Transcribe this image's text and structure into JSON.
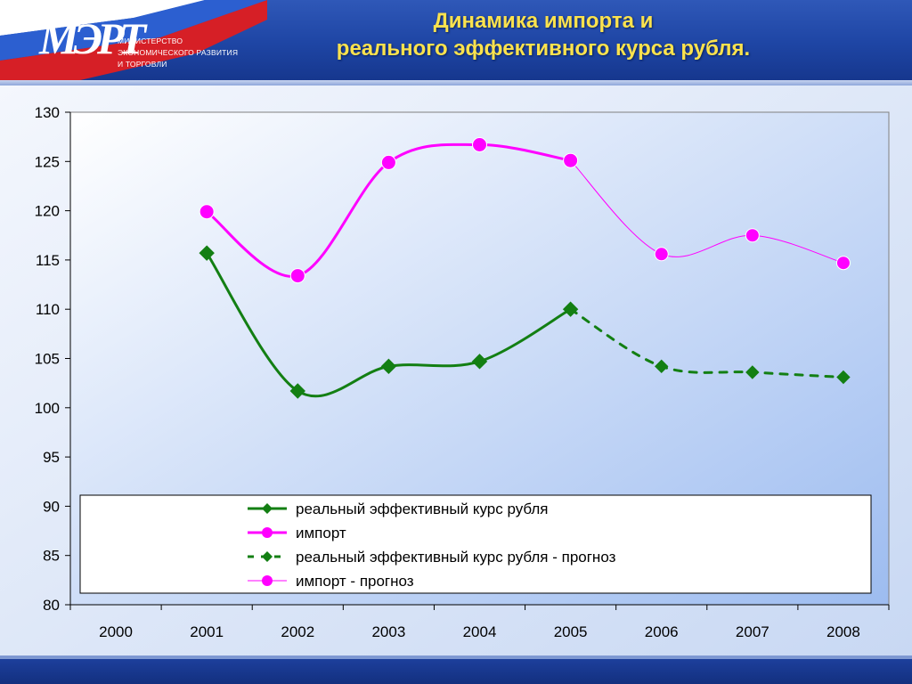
{
  "header": {
    "logo_text": "МЭРТ",
    "ministry_lines": [
      "МИНИСТЕРСТВО",
      "ЭКОНОМИЧЕСКОГО РАЗВИТИЯ",
      "И ТОРГОВЛИ"
    ],
    "title_lines": [
      "Динамика импорта и",
      "реального эффективного курса рубля."
    ]
  },
  "colors": {
    "green": "#137f13",
    "magenta": "#ff00ff",
    "title": "#fbe24e",
    "plot_bg_start": "#ffffff",
    "plot_bg_end": "#9dbcf0"
  },
  "chart_data": {
    "type": "line",
    "categories": [
      "2000",
      "2001",
      "2002",
      "2003",
      "2004",
      "2005",
      "2006",
      "2007",
      "2008"
    ],
    "ylim": [
      80,
      130
    ],
    "yticks": [
      "80",
      "85",
      "90",
      "95",
      "100",
      "105",
      "110",
      "115",
      "120",
      "125",
      "130"
    ],
    "legend_position": "bottom-inside",
    "series": [
      {
        "name": "реальный эффективный курс рубля",
        "style": "solid-diamond",
        "color": "#137f13",
        "values": [
          null,
          115.7,
          101.7,
          104.2,
          104.7,
          110.0,
          null,
          null,
          null
        ]
      },
      {
        "name": "импорт",
        "style": "solid-circle",
        "color": "#ff00ff",
        "values": [
          null,
          119.9,
          113.4,
          124.9,
          126.7,
          125.1,
          null,
          null,
          null
        ]
      },
      {
        "name": "реальный эффективный курс рубля - прогноз",
        "style": "dashed-diamond",
        "color": "#137f13",
        "values": [
          null,
          null,
          null,
          null,
          null,
          110.0,
          104.2,
          103.6,
          103.1
        ]
      },
      {
        "name": "импорт - прогноз",
        "style": "thin-circle",
        "color": "#ff00ff",
        "values": [
          null,
          null,
          null,
          null,
          null,
          125.1,
          115.6,
          117.5,
          114.7
        ]
      }
    ]
  }
}
